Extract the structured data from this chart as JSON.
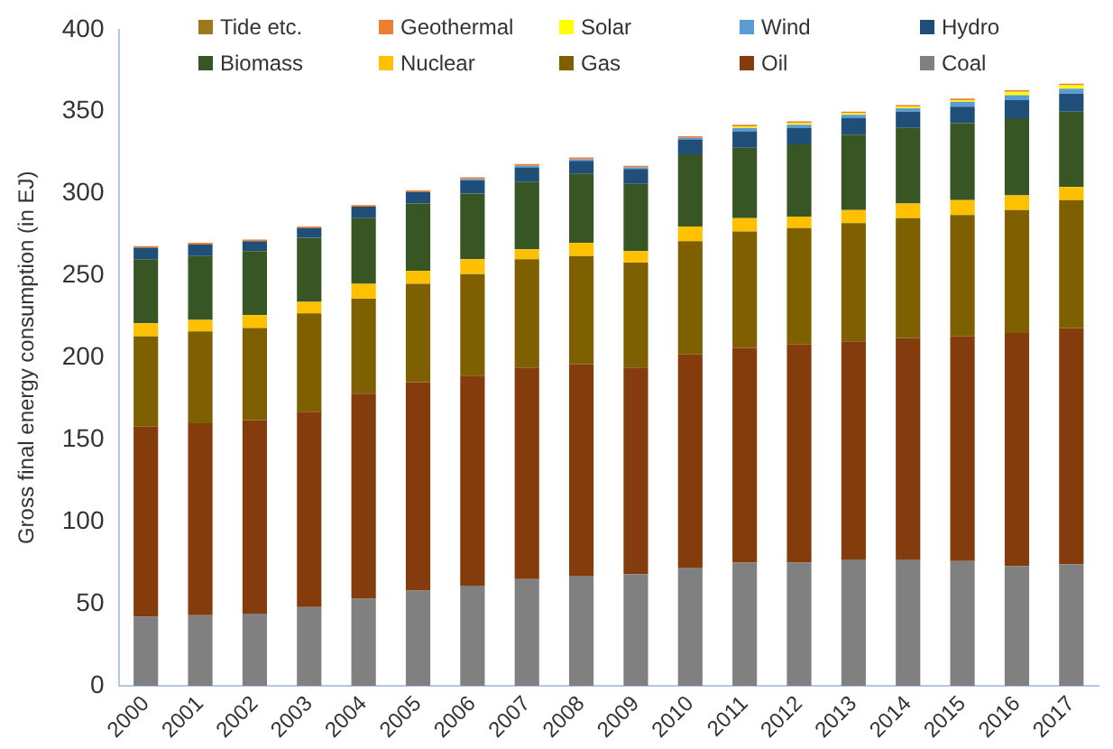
{
  "chart_data": {
    "type": "bar",
    "stacked": true,
    "ylabel": "Gross final energy consumption (in EJ)",
    "categories": [
      "2000",
      "2001",
      "2002",
      "2003",
      "2004",
      "2005",
      "2006",
      "2007",
      "2008",
      "2009",
      "2010",
      "2011",
      "2012",
      "2013",
      "2014",
      "2015",
      "2016",
      "2017"
    ],
    "ylim": [
      0,
      400
    ],
    "yticks": [
      0,
      50,
      100,
      150,
      200,
      250,
      300,
      350,
      400
    ],
    "grid": false,
    "legend": "top",
    "series": [
      {
        "name": "Coal",
        "color": "#808080",
        "values": [
          42,
          43,
          44,
          48,
          53,
          58,
          61,
          65,
          67,
          68,
          72,
          75,
          75,
          77,
          77,
          76,
          73,
          74
        ]
      },
      {
        "name": "Oil",
        "color": "#843c0c",
        "values": [
          116,
          117,
          118,
          119,
          125,
          127,
          128,
          129,
          129,
          126,
          130,
          131,
          133,
          133,
          135,
          137,
          142,
          144
        ]
      },
      {
        "name": "Gas",
        "color": "#7f6000",
        "values": [
          55,
          56,
          56,
          60,
          58,
          60,
          62,
          66,
          66,
          64,
          69,
          71,
          71,
          72,
          73,
          74,
          75,
          78
        ]
      },
      {
        "name": "Nuclear",
        "color": "#ffc000",
        "values": [
          8,
          7,
          8,
          7,
          9,
          8,
          9,
          6,
          8,
          7,
          9,
          8,
          7,
          8,
          9,
          9,
          9,
          8
        ]
      },
      {
        "name": "Biomass",
        "color": "#375623",
        "values": [
          39,
          39,
          39,
          39,
          40,
          41,
          40,
          41,
          42,
          41,
          44,
          43,
          44,
          46,
          46,
          47,
          47,
          46
        ]
      },
      {
        "name": "Hydro",
        "color": "#1f4e79",
        "values": [
          7,
          7,
          6,
          6,
          7,
          7,
          8,
          9,
          8,
          9,
          9,
          10,
          10,
          10,
          10,
          10,
          11,
          11
        ]
      },
      {
        "name": "Wind",
        "color": "#5b9bd5",
        "values": [
          0,
          0,
          0,
          0,
          0,
          0,
          1,
          1,
          1,
          1,
          1,
          2,
          2,
          2,
          2,
          3,
          3,
          3
        ]
      },
      {
        "name": "Solar",
        "color": "#ffff00",
        "values": [
          0,
          0,
          0,
          0,
          0,
          0,
          0,
          0,
          0,
          0,
          0,
          1,
          1,
          1,
          1,
          1,
          2,
          2
        ]
      },
      {
        "name": "Geothermal",
        "color": "#ed7d31",
        "values": [
          1,
          1,
          1,
          1,
          1,
          1,
          1,
          1,
          1,
          1,
          1,
          1,
          1,
          1,
          1,
          1,
          1,
          1
        ]
      },
      {
        "name": "Tide etc.",
        "color": "#9c7a1c",
        "values": [
          null,
          null,
          null,
          null,
          null,
          null,
          null,
          null,
          null,
          null,
          null,
          null,
          null,
          null,
          null,
          null,
          null,
          null
        ]
      }
    ]
  }
}
